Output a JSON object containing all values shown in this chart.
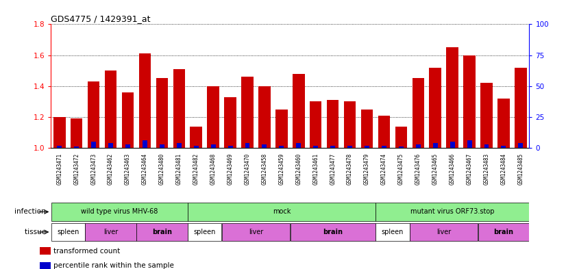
{
  "title": "GDS4775 / 1429391_at",
  "samples": [
    "GSM1243471",
    "GSM1243472",
    "GSM1243473",
    "GSM1243462",
    "GSM1243463",
    "GSM1243464",
    "GSM1243480",
    "GSM1243481",
    "GSM1243482",
    "GSM1243468",
    "GSM1243469",
    "GSM1243470",
    "GSM1243458",
    "GSM1243459",
    "GSM1243460",
    "GSM1243461",
    "GSM1243477",
    "GSM1243478",
    "GSM1243479",
    "GSM1243474",
    "GSM1243475",
    "GSM1243476",
    "GSM1243465",
    "GSM1243466",
    "GSM1243467",
    "GSM1243483",
    "GSM1243484",
    "GSM1243485"
  ],
  "transformed_count": [
    1.2,
    1.19,
    1.43,
    1.5,
    1.36,
    1.61,
    1.45,
    1.51,
    1.14,
    1.4,
    1.33,
    1.46,
    1.4,
    1.25,
    1.48,
    1.3,
    1.31,
    1.3,
    1.25,
    1.21,
    1.14,
    1.45,
    1.52,
    1.65,
    1.6,
    1.42,
    1.32,
    1.52
  ],
  "percentile_rank": [
    2,
    1,
    5,
    4,
    3,
    6,
    3,
    4,
    2,
    3,
    2,
    4,
    3,
    2,
    4,
    2,
    2,
    2,
    2,
    2,
    1,
    3,
    4,
    5,
    6,
    3,
    2,
    4
  ],
  "bar_color": "#cc0000",
  "percentile_color": "#0000cc",
  "ylim_left": [
    1.0,
    1.8
  ],
  "ylim_right": [
    0,
    100
  ],
  "yticks_left": [
    1.0,
    1.2,
    1.4,
    1.6,
    1.8
  ],
  "yticks_right": [
    0,
    25,
    50,
    75,
    100
  ],
  "infection_groups": [
    {
      "label": "wild type virus MHV-68",
      "start": 0,
      "end": 8,
      "color": "#90ee90"
    },
    {
      "label": "mock",
      "start": 8,
      "end": 19,
      "color": "#90ee90"
    },
    {
      "label": "mutant virus ORF73.stop",
      "start": 19,
      "end": 28,
      "color": "#90ee90"
    }
  ],
  "tissue_groups": [
    {
      "label": "spleen",
      "start": 0,
      "end": 2,
      "color": "#ffffff"
    },
    {
      "label": "liver",
      "start": 2,
      "end": 5,
      "color": "#da70d6"
    },
    {
      "label": "brain",
      "start": 5,
      "end": 8,
      "color": "#da70d6"
    },
    {
      "label": "spleen",
      "start": 8,
      "end": 10,
      "color": "#ffffff"
    },
    {
      "label": "liver",
      "start": 10,
      "end": 14,
      "color": "#da70d6"
    },
    {
      "label": "brain",
      "start": 14,
      "end": 19,
      "color": "#da70d6"
    },
    {
      "label": "spleen",
      "start": 19,
      "end": 21,
      "color": "#ffffff"
    },
    {
      "label": "liver",
      "start": 21,
      "end": 25,
      "color": "#da70d6"
    },
    {
      "label": "brain",
      "start": 25,
      "end": 28,
      "color": "#da70d6"
    }
  ],
  "sample_bg_color": "#d3d3d3",
  "legend_items": [
    {
      "color": "#cc0000",
      "label": "transformed count"
    },
    {
      "color": "#0000cc",
      "label": "percentile rank within the sample"
    }
  ]
}
